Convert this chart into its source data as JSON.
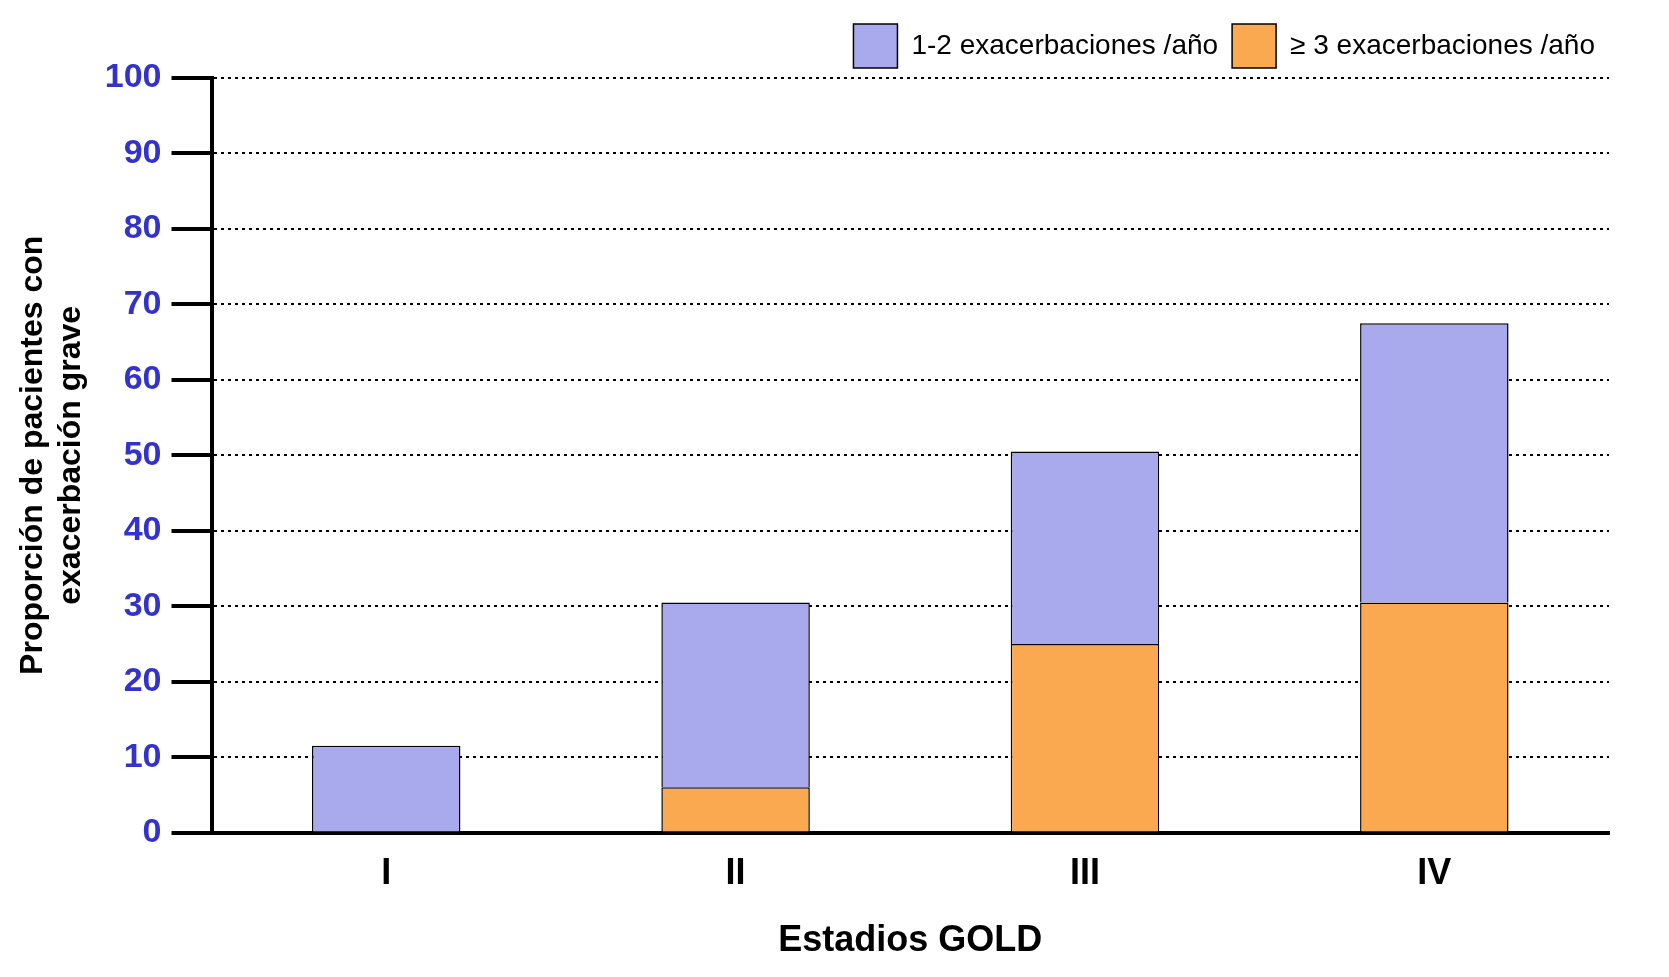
{
  "chart_data": {
    "type": "bar",
    "stacked": true,
    "categories": [
      "I",
      "II",
      "III",
      "IV"
    ],
    "series": [
      {
        "name": "≥ 3 exacerbaciones /año",
        "color": "#fba950",
        "values": [
          0,
          6,
          25,
          30.5
        ]
      },
      {
        "name": "1-2 exacerbaciones /año",
        "color": "#a9a9ee",
        "values": [
          11.5,
          24.5,
          25.5,
          37
        ]
      }
    ],
    "xlabel": "Estadios GOLD",
    "ylabel": "Proporción de pacientes con\nexacerbación grave",
    "ylim": [
      0,
      100
    ],
    "yticks": [
      0,
      10,
      20,
      30,
      40,
      50,
      60,
      70,
      80,
      90,
      100
    ],
    "grid": "y",
    "legend": "top right"
  }
}
